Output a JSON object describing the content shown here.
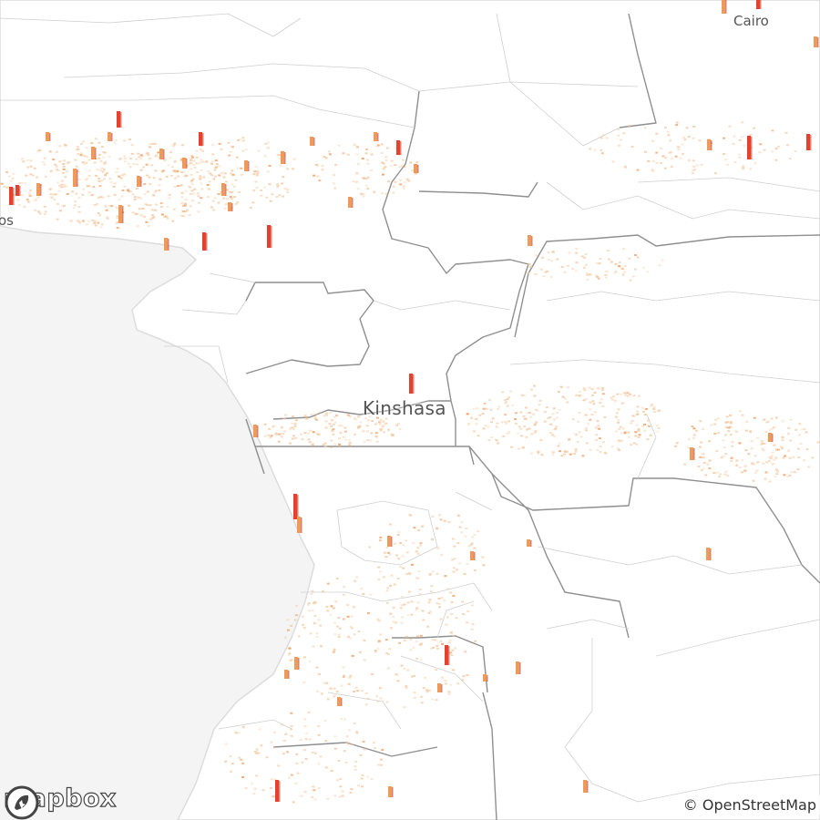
{
  "map": {
    "labels": {
      "kinshasa": "Kinshasa",
      "cairo": "Cairo",
      "lagos": "os"
    },
    "logo_text": "mapbox",
    "attribution": "© OpenStreetMap",
    "colors": {
      "ocean": "#f4f4f4",
      "land": "#ffffff",
      "border": "#9a9a9a",
      "low_density": "#f3c9a0",
      "mid_density": "#f09a5a",
      "high_density": "#e8402a"
    }
  }
}
